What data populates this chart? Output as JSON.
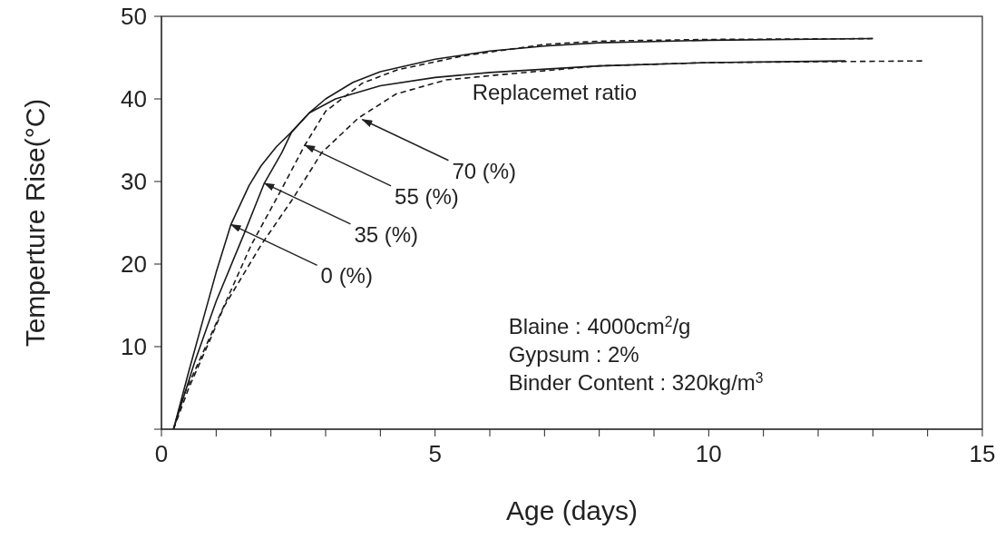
{
  "chart_data": {
    "type": "line",
    "xlabel": "Age (days)",
    "ylabel": "Temperture Rise(°C)",
    "xlim": [
      0,
      15
    ],
    "ylim": [
      0,
      50
    ],
    "xticks": [
      0,
      {
        "value": 1,
        "label": null
      },
      {
        "value": 2,
        "label": null
      },
      {
        "value": 3,
        "label": null
      },
      {
        "value": 4,
        "label": null
      },
      5,
      {
        "value": 6,
        "label": null
      },
      {
        "value": 7,
        "label": null
      },
      {
        "value": 8,
        "label": null
      },
      {
        "value": 9,
        "label": null
      },
      10,
      {
        "value": 11,
        "label": null
      },
      {
        "value": 12,
        "label": null
      },
      {
        "value": 13,
        "label": null
      },
      {
        "value": 14,
        "label": null
      },
      15
    ],
    "yticks": [
      {
        "value": 0,
        "label": null
      },
      10,
      20,
      30,
      40,
      50
    ],
    "marker": "none",
    "series": [
      {
        "color": "#1a1a1a",
        "line_style": "solid",
        "x": [
          0.22,
          0.5,
          0.77,
          1.0,
          1.27,
          1.6,
          1.82,
          2.1,
          2.38,
          2.7,
          3.0,
          3.5,
          4.0,
          5,
          6,
          7,
          8,
          10,
          13
        ],
        "values": [
          0,
          7,
          13.5,
          19,
          24.8,
          29.5,
          31.9,
          34.2,
          36,
          38.3,
          40,
          42,
          43.3,
          44.8,
          45.8,
          46.4,
          46.8,
          47.1,
          47.3
        ]
      },
      {
        "color": "#1a1a1a",
        "line_style": "solid",
        "x": [
          0.22,
          0.6,
          1.0,
          1.5,
          1.88,
          2.2,
          2.38,
          2.7,
          3.18,
          4,
          5,
          6,
          8,
          10,
          12.5
        ],
        "values": [
          0,
          8,
          15.5,
          23.5,
          29.8,
          33.5,
          36,
          38.3,
          40,
          41.6,
          42.6,
          43.2,
          44,
          44.4,
          44.6
        ]
      },
      {
        "color": "#1a1a1a",
        "line_style": "dashed",
        "x": [
          0.22,
          0.4,
          1.08,
          1.64,
          2.19,
          2.62,
          3.0,
          3.67,
          4.3,
          5.5,
          7,
          8,
          10,
          13
        ],
        "values": [
          0,
          4,
          14,
          22.3,
          29,
          34.4,
          38.5,
          41.9,
          43.5,
          45.2,
          46.6,
          47,
          47.2,
          47.3
        ]
      },
      {
        "color": "#1a1a1a",
        "line_style": "dashed",
        "x": [
          0.22,
          0.5,
          0.9,
          1.14,
          1.82,
          2.38,
          2.93,
          3.6,
          4.29,
          5.2,
          6.14,
          8,
          10,
          13.9
        ],
        "values": [
          0,
          5,
          11,
          14.8,
          22.3,
          27.7,
          33.5,
          37.7,
          40.6,
          42.3,
          42.9,
          44,
          44.4,
          44.6
        ]
      }
    ],
    "annotations": [
      {
        "text": "0 (%)",
        "x": 1.27,
        "y": 24.8
      },
      {
        "text": "35 (%)",
        "x": 1.88,
        "y": 29.8
      },
      {
        "text": "55 (%)",
        "x": 2.62,
        "y": 34.4
      },
      {
        "text": "70 (%)",
        "x": 3.67,
        "y": 37.5
      },
      "Replacemet ratio",
      "Blaine : 4000cm$^{2}$/g",
      "Gypsum : 2%",
      "Binder Content : 320kg/m$^{3}$"
    ]
  }
}
